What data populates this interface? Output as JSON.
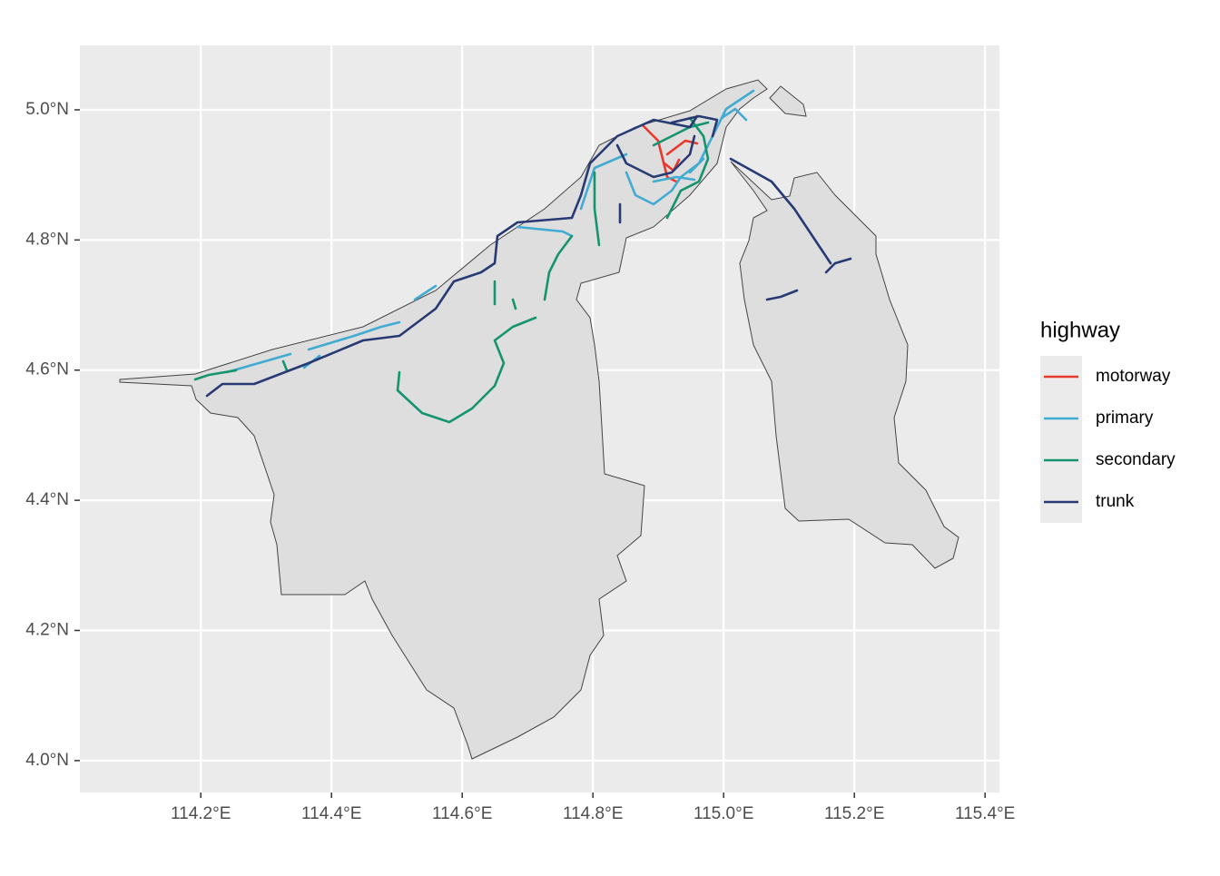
{
  "chart_data": {
    "type": "map",
    "xlim": [
      114.015,
      115.422
    ],
    "ylim": [
      3.951,
      5.099
    ],
    "xticks": [
      {
        "value": 114.2,
        "label": "114.2°E"
      },
      {
        "value": 114.4,
        "label": "114.4°E"
      },
      {
        "value": 114.6,
        "label": "114.6°E"
      },
      {
        "value": 114.8,
        "label": "114.8°E"
      },
      {
        "value": 115.0,
        "label": "115.0°E"
      },
      {
        "value": 115.2,
        "label": "115.2°E"
      },
      {
        "value": 115.4,
        "label": "115.4°E"
      }
    ],
    "yticks": [
      {
        "value": 4.0,
        "label": "4.0°N"
      },
      {
        "value": 4.2,
        "label": "4.2°N"
      },
      {
        "value": 4.4,
        "label": "4.4°N"
      },
      {
        "value": 4.6,
        "label": "4.6°N"
      },
      {
        "value": 4.8,
        "label": "4.8°N"
      },
      {
        "value": 5.0,
        "label": "5.0°N"
      }
    ],
    "grid": true,
    "legend": {
      "title": "highway",
      "position": "right"
    },
    "series": [
      {
        "name": "motorway",
        "color": "#e8392d"
      },
      {
        "name": "primary",
        "color": "#41abd2"
      },
      {
        "name": "secondary",
        "color": "#16946f"
      },
      {
        "name": "trunk",
        "color": "#273a74"
      }
    ]
  }
}
